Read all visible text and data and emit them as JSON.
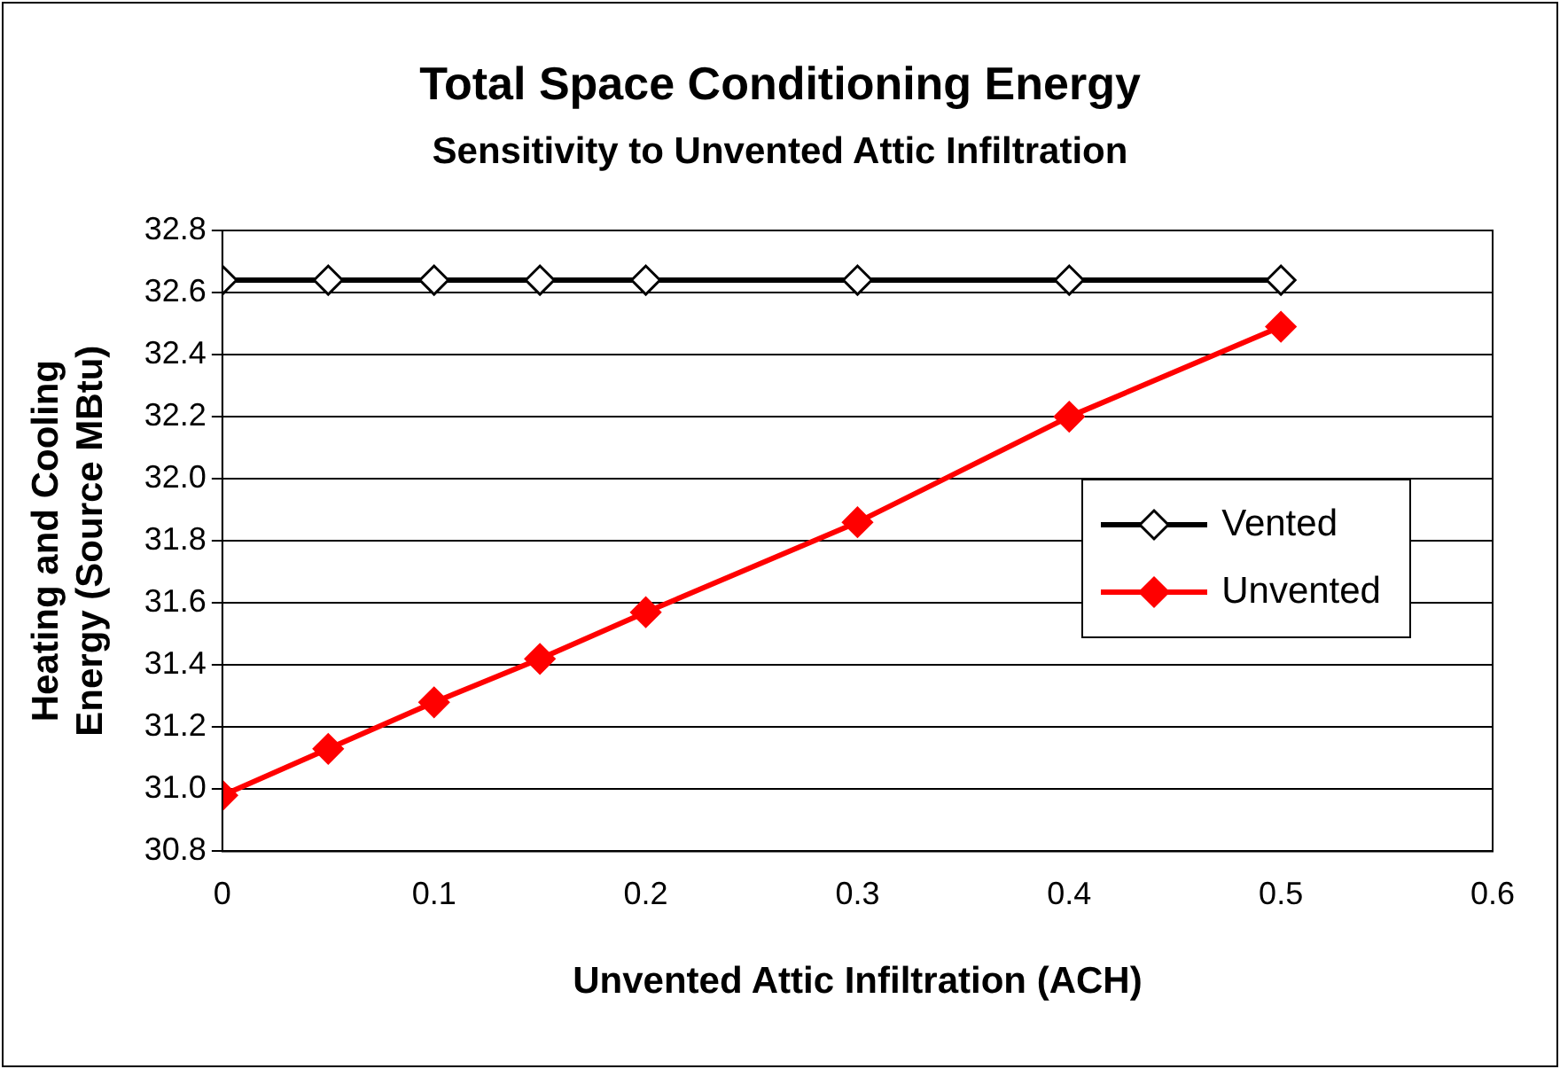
{
  "chart_data": {
    "type": "line",
    "title": "Total Space Conditioning Energy",
    "subtitle": "Sensitivity to Unvented Attic Infiltration",
    "xlabel": "Unvented Attic Infiltration (ACH)",
    "ylabel": "Heating and Cooling Energy (Source MBtu)",
    "x": [
      0,
      0.05,
      0.1,
      0.15,
      0.2,
      0.3,
      0.4,
      0.5
    ],
    "series": [
      {
        "name": "Vented",
        "color": "#000000",
        "values": [
          32.64,
          32.64,
          32.64,
          32.64,
          32.64,
          32.64,
          32.64,
          32.64
        ]
      },
      {
        "name": "Unvented",
        "color": "#ff0000",
        "values": [
          30.98,
          31.13,
          31.28,
          31.42,
          31.57,
          31.86,
          32.2,
          32.49
        ]
      }
    ],
    "xlim": [
      0,
      0.6
    ],
    "xticks": [
      0,
      0.1,
      0.2,
      0.3,
      0.4,
      0.5,
      0.6
    ],
    "ylim": [
      30.8,
      32.8
    ],
    "yticks": [
      {
        "value": 30.8,
        "label": "30.8"
      },
      {
        "value": 31,
        "label": "31.0"
      },
      {
        "value": 31.2,
        "label": "31.2"
      },
      {
        "value": 31.4,
        "label": "31.4"
      },
      {
        "value": 31.6,
        "label": "31.6"
      },
      {
        "value": 31.8,
        "label": "31.8"
      },
      {
        "value": 32,
        "label": "32.0"
      },
      {
        "value": 32.2,
        "label": "32.2"
      },
      {
        "value": 32.4,
        "label": "32.4"
      },
      {
        "value": 32.6,
        "label": "32.6"
      },
      {
        "value": 32.8,
        "label": "32.8"
      }
    ],
    "grid": "y",
    "legend": "right",
    "marker": "diamond",
    "line_style": "solid"
  }
}
